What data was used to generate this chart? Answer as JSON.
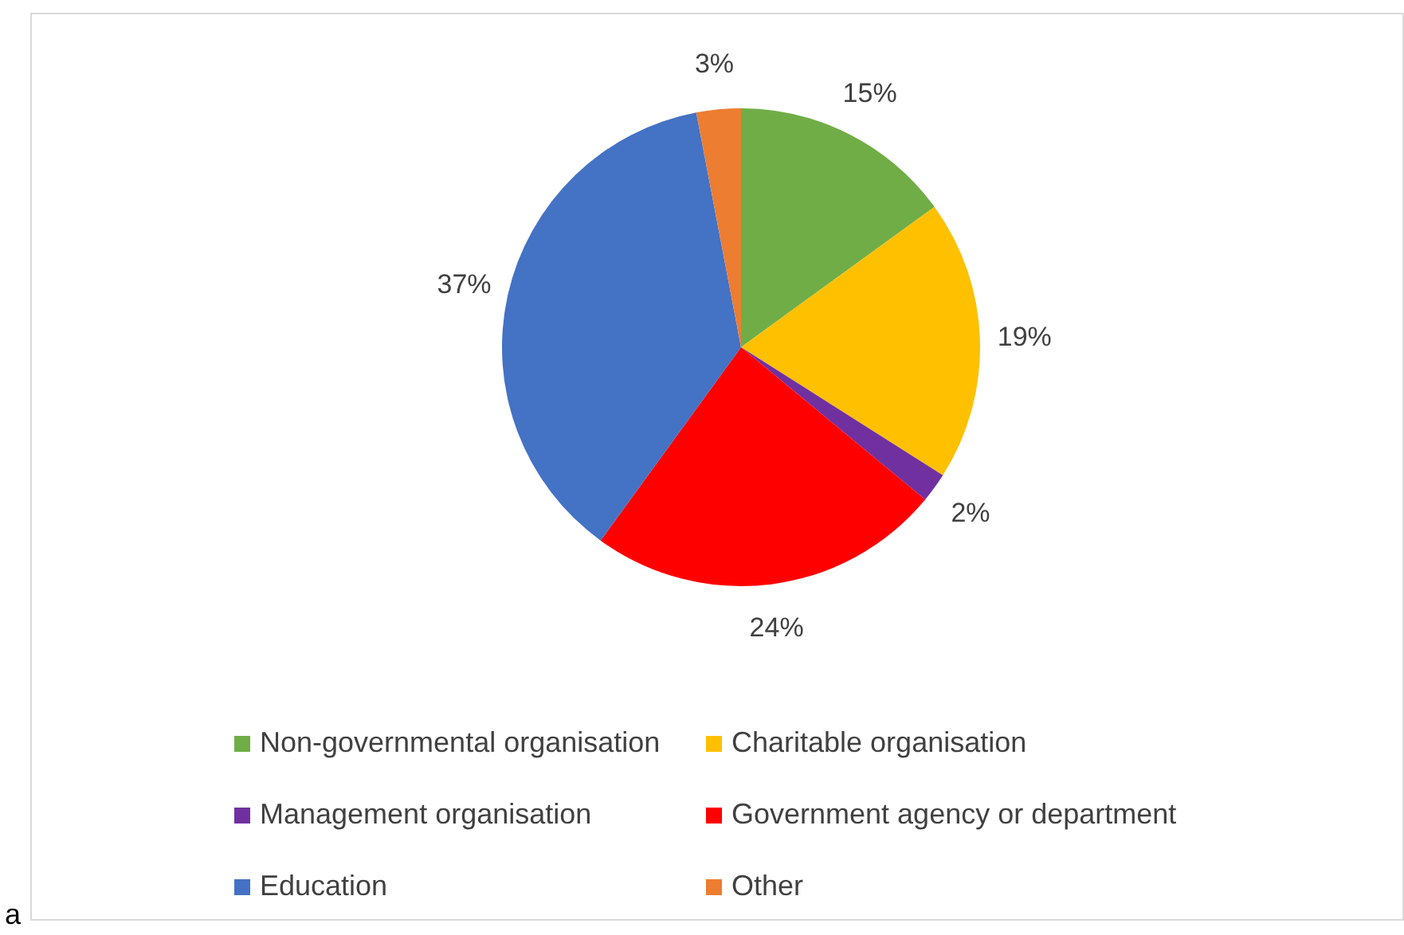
{
  "chart_data": {
    "type": "pie",
    "categories": [
      "Non-governmental organisation",
      "Charitable organisation",
      "Management organisation",
      "Government agency or department",
      "Education",
      "Other"
    ],
    "values": [
      15,
      19,
      2,
      24,
      37,
      3
    ],
    "colors": [
      "#70ad47",
      "#ffc000",
      "#7030a0",
      "#ff0000",
      "#4472c4",
      "#ed7d31"
    ],
    "value_labels": [
      "15%",
      "19%",
      "2%",
      "24%",
      "37%",
      "3%"
    ],
    "legend": "bottom",
    "annotations": [
      "a"
    ]
  }
}
